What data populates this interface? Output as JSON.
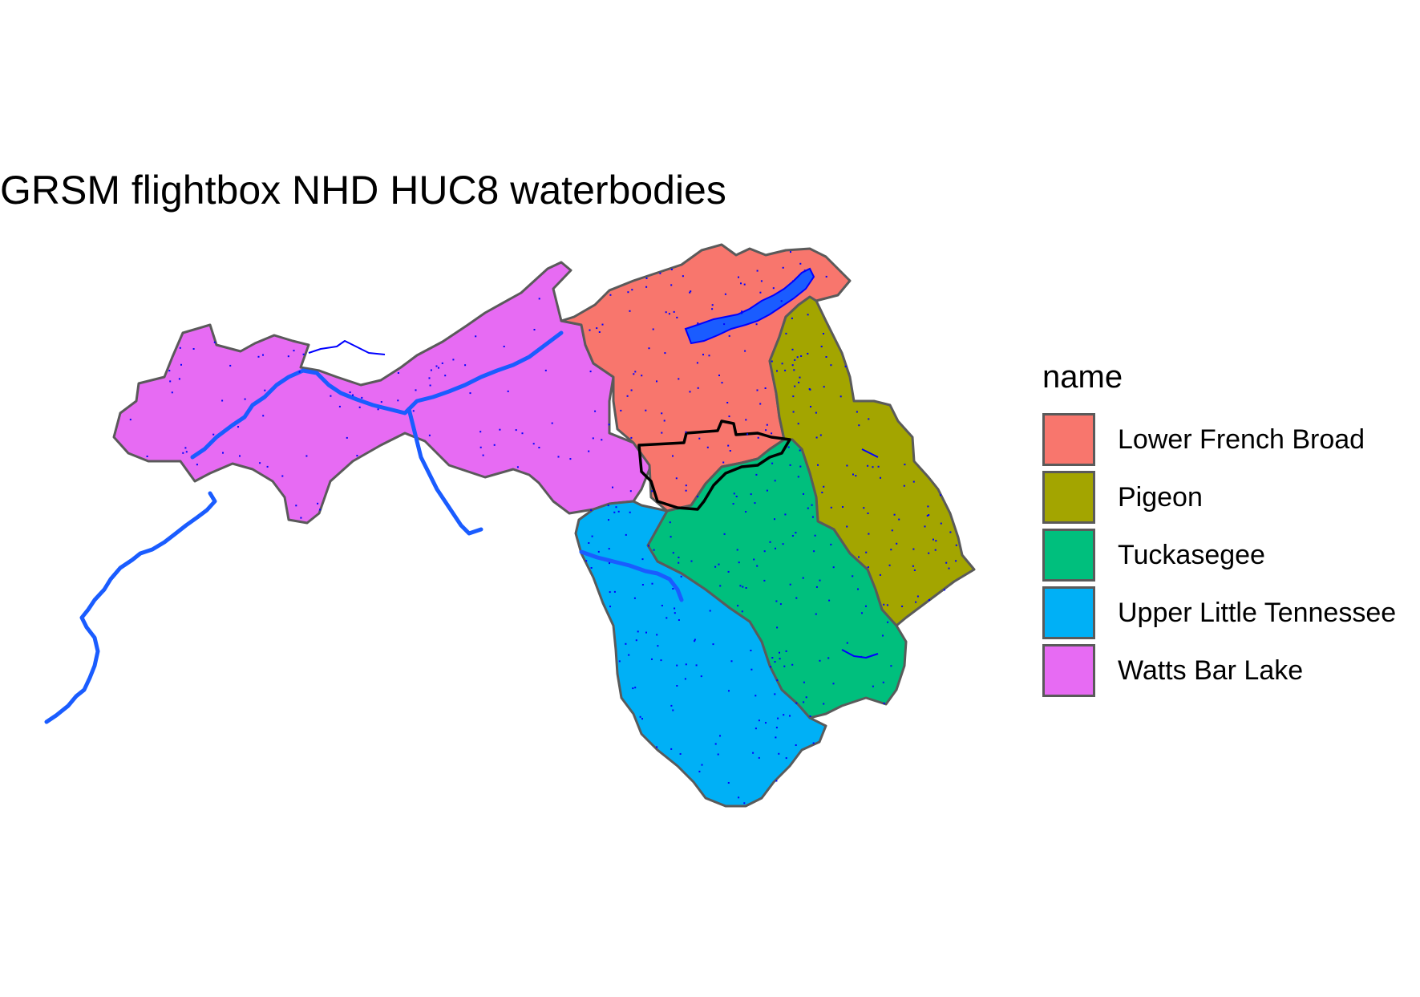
{
  "title": "GRSM flightbox NHD HUC8 waterbodies",
  "legend": {
    "title": "name",
    "items": [
      {
        "label": "Lower French Broad",
        "color": "#F8766D"
      },
      {
        "label": "Pigeon",
        "color": "#A3A500"
      },
      {
        "label": "Tuckasegee",
        "color": "#00BF7D"
      },
      {
        "label": "Upper Little Tennessee",
        "color": "#00B0F6"
      },
      {
        "label": "Watts Bar Lake",
        "color": "#E76BF3"
      }
    ]
  },
  "style": {
    "boundary_color": "#5a5a5a",
    "flightbox_color": "#000000",
    "waterbody_color": "#1a5cff",
    "waterbody_outline": "#0000ff"
  }
}
